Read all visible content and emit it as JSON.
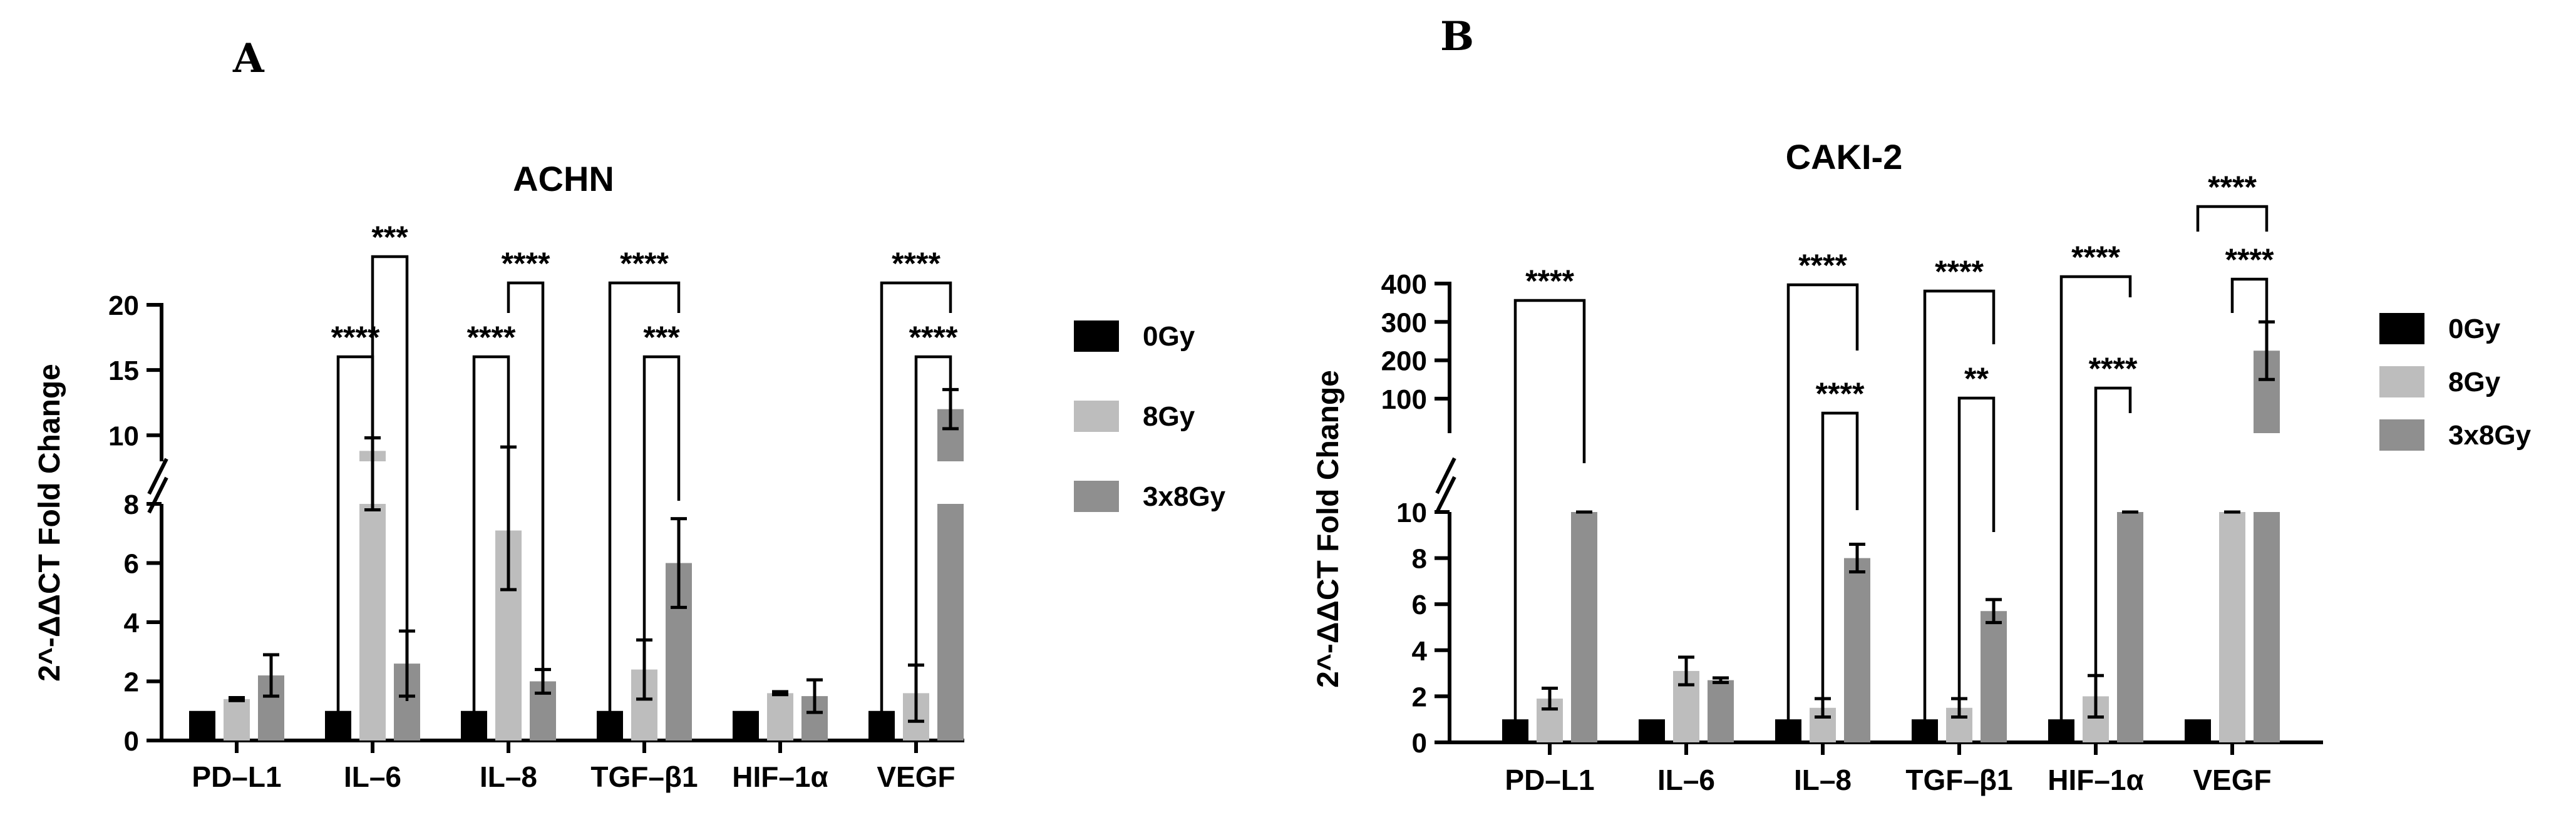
{
  "chart_data": [
    {
      "panel": "A",
      "type": "bar",
      "title": "ACHN",
      "ylabel": "2^-ΔΔCT Fold Change",
      "categories": [
        "PD–L1",
        "IL–6",
        "IL–8",
        "TGF–β1",
        "HIF–1α",
        "VEGF"
      ],
      "series": [
        {
          "name": "0Gy",
          "color": "#000000",
          "values": [
            1,
            1,
            1,
            1,
            1,
            1
          ],
          "errors": [
            0,
            0,
            0,
            0,
            0,
            0
          ]
        },
        {
          "name": "8Gy",
          "color": "#bdbdbd",
          "values": [
            1.4,
            8.8,
            7.1,
            2.4,
            1.6,
            1.6
          ],
          "errors": [
            0.05,
            1.0,
            2.0,
            1.0,
            0.05,
            0.95
          ]
        },
        {
          "name": "3x8Gy",
          "color": "#8f8f8f",
          "values": [
            2.2,
            2.6,
            2.0,
            6.0,
            1.5,
            12.0
          ],
          "errors": [
            0.7,
            1.1,
            0.4,
            1.5,
            0.55,
            1.5
          ]
        }
      ],
      "y_axis": {
        "lower_range": [
          0,
          8
        ],
        "lower_ticks": [
          0,
          2,
          4,
          6,
          8
        ],
        "upper_range": [
          8,
          20
        ],
        "upper_ticks": [
          10,
          15,
          20
        ]
      },
      "significance": [
        {
          "category": "IL–6",
          "pair": "0Gy-8Gy",
          "label": "****"
        },
        {
          "category": "IL–6",
          "pair": "8Gy-3x8Gy",
          "label": "***"
        },
        {
          "category": "IL–8",
          "pair": "0Gy-8Gy",
          "label": "****"
        },
        {
          "category": "IL–8",
          "pair": "8Gy-3x8Gy",
          "label": "****"
        },
        {
          "category": "TGF–β1",
          "pair": "0Gy-3x8Gy",
          "label": "****"
        },
        {
          "category": "TGF–β1",
          "pair": "8Gy-3x8Gy",
          "label": "***"
        },
        {
          "category": "VEGF",
          "pair": "0Gy-3x8Gy",
          "label": "****"
        },
        {
          "category": "VEGF",
          "pair": "8Gy-3x8Gy",
          "label": "****"
        }
      ]
    },
    {
      "panel": "B",
      "type": "bar",
      "title": "CAKI-2",
      "ylabel": "2^-ΔΔCT Fold Change",
      "categories": [
        "PD–L1",
        "IL–6",
        "IL–8",
        "TGF–β1",
        "HIF–1α",
        "VEGF"
      ],
      "series": [
        {
          "name": "0Gy",
          "color": "#000000",
          "values": [
            1,
            1,
            1,
            1,
            1,
            1
          ],
          "errors": [
            0,
            0,
            0,
            0,
            0,
            0
          ]
        },
        {
          "name": "8Gy",
          "color": "#bdbdbd",
          "values": [
            1.9,
            3.1,
            1.5,
            1.5,
            2.0,
            10.0
          ],
          "errors": [
            0.45,
            0.6,
            0.4,
            0.4,
            0.9,
            0
          ]
        },
        {
          "name": "3x8Gy",
          "color": "#8f8f8f",
          "values": [
            10.0,
            2.7,
            8.0,
            5.7,
            10.0,
            225
          ],
          "errors": [
            0,
            0.1,
            0.6,
            0.5,
            0,
            75
          ]
        }
      ],
      "y_axis": {
        "lower_range": [
          0,
          10
        ],
        "lower_ticks": [
          0,
          2,
          4,
          6,
          8,
          10
        ],
        "upper_range": [
          10,
          400
        ],
        "upper_ticks": [
          100,
          200,
          300,
          400
        ]
      },
      "significance": [
        {
          "category": "PD–L1",
          "pair": "0Gy-3x8Gy",
          "label": "****"
        },
        {
          "category": "IL–8",
          "pair": "0Gy-3x8Gy",
          "label": "****"
        },
        {
          "category": "IL–8",
          "pair": "8Gy-3x8Gy",
          "label": "****"
        },
        {
          "category": "TGF–β1",
          "pair": "0Gy-3x8Gy",
          "label": "****"
        },
        {
          "category": "TGF–β1",
          "pair": "8Gy-3x8Gy",
          "label": "**"
        },
        {
          "category": "HIF–1α",
          "pair": "0Gy-3x8Gy",
          "label": "****"
        },
        {
          "category": "HIF–1α",
          "pair": "8Gy-3x8Gy",
          "label": "****"
        },
        {
          "category": "VEGF",
          "pair": "0Gy-3x8Gy",
          "label": "****"
        },
        {
          "category": "VEGF",
          "pair": "8Gy-3x8Gy",
          "label": "****"
        }
      ]
    }
  ]
}
